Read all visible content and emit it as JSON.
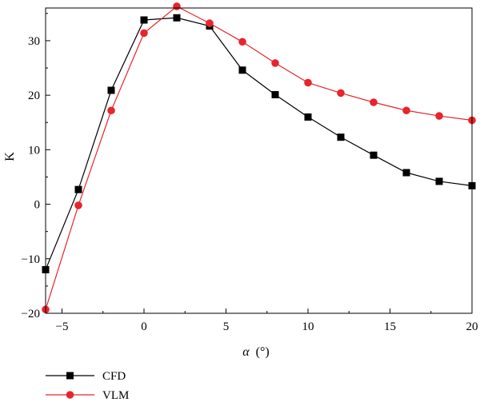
{
  "chart_data": {
    "type": "line",
    "title": "",
    "xlabel_symbol": "α",
    "xlabel_unit": "(°)",
    "ylabel": "K",
    "xlim": [
      -6,
      20
    ],
    "ylim": [
      -20,
      36
    ],
    "xticks": [
      -5,
      0,
      5,
      10,
      15,
      20
    ],
    "yticks": [
      -20,
      -10,
      0,
      10,
      20,
      30
    ],
    "grid": false,
    "legend_position": "bottom-left",
    "series": [
      {
        "name": "CFD",
        "color": "#000000",
        "marker": "square",
        "x": [
          -6,
          -4,
          -2,
          0,
          2,
          4,
          6,
          8,
          10,
          12,
          14,
          16,
          18,
          20
        ],
        "y": [
          -12,
          2.7,
          20.9,
          33.8,
          34.2,
          32.7,
          24.6,
          20.1,
          16.0,
          12.3,
          9.0,
          5.8,
          4.2,
          3.4
        ]
      },
      {
        "name": "VLM",
        "color": "#e8242c",
        "marker": "circle",
        "x": [
          -6,
          -4,
          -2,
          0,
          2,
          4,
          6,
          8,
          10,
          12,
          14,
          16,
          18,
          20
        ],
        "y": [
          -19.3,
          -0.2,
          17.2,
          31.4,
          36.3,
          33.2,
          29.8,
          25.9,
          22.3,
          20.4,
          18.7,
          17.2,
          16.2,
          15.4
        ]
      }
    ]
  }
}
